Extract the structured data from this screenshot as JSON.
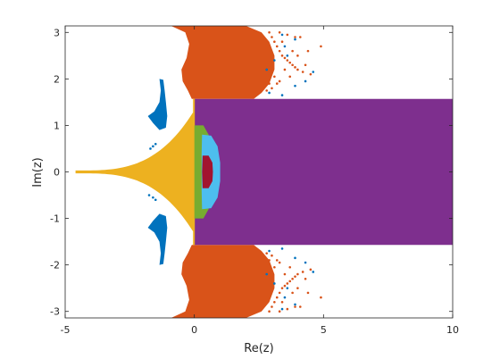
{
  "chart_data": {
    "type": "scatter",
    "title": "",
    "xlabel": "Re(z)",
    "ylabel": "Im(z)",
    "xlim": [
      -5,
      10
    ],
    "ylim": [
      -3.14,
      3.14
    ],
    "x_ticks": [
      -5,
      0,
      5,
      10
    ],
    "x_tick_labels": [
      "-5",
      "0",
      "5",
      "10"
    ],
    "y_ticks": [
      -3,
      -2,
      -1,
      0,
      1,
      2,
      3
    ],
    "y_tick_labels": [
      "-3",
      "-2",
      "-1",
      "0",
      "1",
      "2",
      "3"
    ],
    "grid": false,
    "legend": "none",
    "box": true,
    "colors": {
      "purple": "#7e2f8e",
      "orange": "#d95319",
      "yellow": "#edb120",
      "blue": "#0072bd",
      "green": "#77ac30",
      "cyan": "#4dbeee",
      "red": "#a2142f"
    },
    "regions": {
      "purple_rect": {
        "x": [
          0,
          10
        ],
        "y": [
          -1.57,
          1.57
        ],
        "color": "purple"
      },
      "yellow_strip": {
        "x": [
          -0.05,
          0
        ],
        "y": [
          -1.57,
          1.57
        ],
        "color": "yellow"
      },
      "yellow_tail": {
        "x": [
          -4.6,
          -0.05
        ],
        "color": "yellow"
      },
      "green_region": {
        "x": [
          0,
          0.7
        ],
        "y": [
          -1.0,
          1.0
        ],
        "color": "green"
      },
      "cyan_region": {
        "x": [
          0.25,
          1.0
        ],
        "y": [
          -0.8,
          0.8
        ],
        "color": "cyan"
      },
      "red_region": {
        "x": [
          0.3,
          0.7
        ],
        "y": [
          -0.35,
          0.35
        ],
        "color": "red"
      },
      "orange_top": {
        "x": [
          -1.5,
          3.2
        ],
        "y": [
          1.57,
          3.14
        ],
        "color": "orange"
      },
      "orange_bottom": {
        "x": [
          -1.5,
          3.2
        ],
        "y": [
          -3.14,
          -1.57
        ],
        "color": "orange"
      },
      "blue_top": {
        "x": [
          -1.8,
          -0.9
        ],
        "y": [
          0.9,
          2.0
        ],
        "color": "blue"
      },
      "blue_bottom": {
        "x": [
          -1.8,
          -0.9
        ],
        "y": [
          -2.0,
          -0.9
        ],
        "color": "blue"
      }
    },
    "scatter_orange": [
      [
        2.9,
        3.0
      ],
      [
        3.0,
        2.9
      ],
      [
        3.1,
        2.8
      ],
      [
        3.2,
        2.7
      ],
      [
        3.3,
        2.6
      ],
      [
        3.4,
        2.5
      ],
      [
        3.5,
        2.45
      ],
      [
        3.6,
        2.4
      ],
      [
        3.7,
        2.35
      ],
      [
        3.8,
        2.3
      ],
      [
        3.9,
        2.25
      ],
      [
        4.0,
        2.2
      ],
      [
        4.2,
        2.15
      ],
      [
        4.5,
        2.1
      ],
      [
        4.9,
        2.7
      ],
      [
        4.3,
        2.3
      ],
      [
        4.1,
        2.9
      ],
      [
        3.9,
        2.9
      ],
      [
        3.6,
        2.95
      ],
      [
        3.3,
        3.0
      ],
      [
        3.5,
        2.2
      ],
      [
        3.1,
        2.05
      ],
      [
        2.9,
        1.9
      ],
      [
        2.8,
        1.75
      ],
      [
        3.0,
        1.8
      ],
      [
        3.3,
        1.95
      ],
      [
        3.7,
        2.05
      ],
      [
        4.0,
        2.5
      ],
      [
        4.4,
        2.6
      ],
      [
        3.8,
        2.6
      ],
      [
        3.4,
        2.8
      ],
      [
        3.2,
        1.9
      ],
      [
        2.9,
        -3.0
      ],
      [
        3.0,
        -2.9
      ],
      [
        3.1,
        -2.8
      ],
      [
        3.2,
        -2.7
      ],
      [
        3.3,
        -2.6
      ],
      [
        3.4,
        -2.5
      ],
      [
        3.5,
        -2.45
      ],
      [
        3.6,
        -2.4
      ],
      [
        3.7,
        -2.35
      ],
      [
        3.8,
        -2.3
      ],
      [
        3.9,
        -2.25
      ],
      [
        4.0,
        -2.2
      ],
      [
        4.2,
        -2.15
      ],
      [
        4.5,
        -2.1
      ],
      [
        4.9,
        -2.7
      ],
      [
        4.3,
        -2.3
      ],
      [
        4.1,
        -2.9
      ],
      [
        3.9,
        -2.9
      ],
      [
        3.6,
        -2.95
      ],
      [
        3.3,
        -3.0
      ],
      [
        3.5,
        -2.2
      ],
      [
        3.1,
        -2.05
      ],
      [
        2.9,
        -1.9
      ],
      [
        2.8,
        -1.75
      ],
      [
        3.0,
        -1.8
      ],
      [
        3.3,
        -1.95
      ],
      [
        3.7,
        -2.05
      ],
      [
        4.0,
        -2.5
      ],
      [
        4.4,
        -2.6
      ],
      [
        3.8,
        -2.6
      ],
      [
        3.4,
        -2.8
      ],
      [
        3.2,
        -1.9
      ]
    ],
    "scatter_blue": [
      [
        3.4,
        2.95
      ],
      [
        3.9,
        2.85
      ],
      [
        3.1,
        2.4
      ],
      [
        3.5,
        2.7
      ],
      [
        2.8,
        2.2
      ],
      [
        4.6,
        2.15
      ],
      [
        3.9,
        1.85
      ],
      [
        3.4,
        1.65
      ],
      [
        2.9,
        1.7
      ],
      [
        3.6,
        2.5
      ],
      [
        4.3,
        1.95
      ],
      [
        3.4,
        -2.95
      ],
      [
        3.9,
        -2.85
      ],
      [
        3.1,
        -2.4
      ],
      [
        3.5,
        -2.7
      ],
      [
        2.8,
        -2.2
      ],
      [
        4.6,
        -2.15
      ],
      [
        3.9,
        -1.85
      ],
      [
        3.4,
        -1.65
      ],
      [
        2.9,
        -1.7
      ],
      [
        3.6,
        -2.5
      ],
      [
        4.3,
        -1.95
      ],
      [
        -1.7,
        0.5
      ],
      [
        -1.6,
        0.55
      ],
      [
        -1.5,
        0.6
      ],
      [
        -1.75,
        -0.5
      ],
      [
        -1.6,
        -0.55
      ],
      [
        -1.5,
        -0.6
      ]
    ]
  }
}
